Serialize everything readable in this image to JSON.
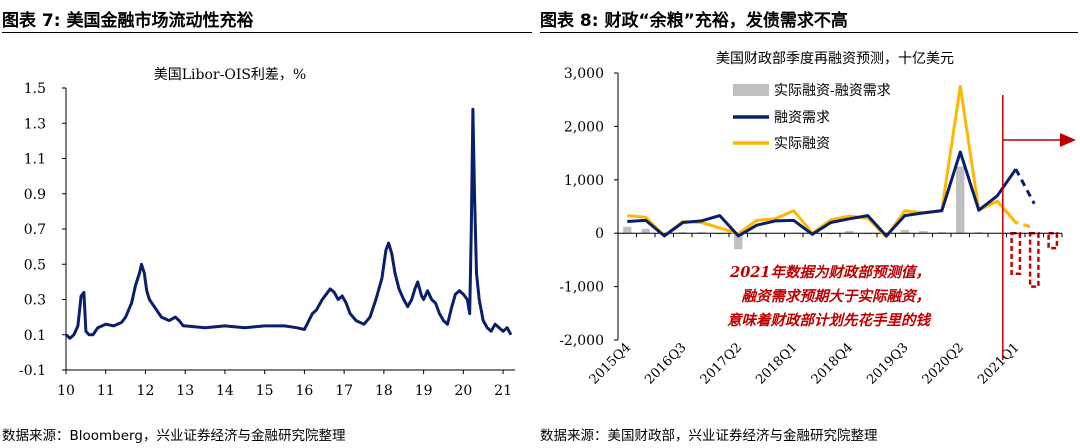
{
  "panels": [
    {
      "figure_label": "图表 7:",
      "figure_title": "美国金融市场流动性充裕",
      "source": "数据来源：Bloomberg，兴业证券经济与金融研究院整理"
    },
    {
      "figure_label": "图表 8:",
      "figure_title": "财政“余粮”充裕，发债需求不高",
      "source": "数据来源：美国财政部，兴业证券经济与金融研究院整理"
    }
  ],
  "chart_data": [
    {
      "type": "line",
      "title": "美国Libor-OIS利差，%",
      "xlabel": "",
      "ylabel": "",
      "ylim": [
        -0.1,
        1.5
      ],
      "xlim": [
        10,
        21.3
      ],
      "y_ticks": [
        "1.5",
        "1.3",
        "1.1",
        "0.9",
        "0.7",
        "0.5",
        "0.3",
        "0.1",
        "-0.1"
      ],
      "x_ticks": [
        "10",
        "11",
        "12",
        "13",
        "14",
        "15",
        "16",
        "17",
        "18",
        "19",
        "20",
        "21"
      ],
      "legend": "none",
      "grid": false,
      "color": "#0a1f6b",
      "series": [
        {
          "x": [
            10.0,
            10.1,
            10.2,
            10.3,
            10.38,
            10.45,
            10.5,
            10.58,
            10.68,
            10.8,
            11.0,
            11.2,
            11.4,
            11.5,
            11.65,
            11.75,
            11.85,
            11.9,
            11.97,
            12.03,
            12.1,
            12.25,
            12.4,
            12.6,
            12.75,
            12.85,
            12.95,
            13.0,
            13.5,
            14.0,
            14.5,
            15.0,
            15.5,
            15.8,
            16.0,
            16.2,
            16.3,
            16.45,
            16.55,
            16.65,
            16.75,
            16.85,
            16.95,
            17.05,
            17.15,
            17.3,
            17.5,
            17.65,
            17.8,
            17.95,
            18.05,
            18.12,
            18.2,
            18.28,
            18.38,
            18.5,
            18.6,
            18.7,
            18.78,
            18.85,
            18.95,
            19.0,
            19.1,
            19.2,
            19.3,
            19.4,
            19.5,
            19.6,
            19.7,
            19.8,
            19.9,
            20.0,
            20.1,
            20.16,
            20.2,
            20.24,
            20.28,
            20.33,
            20.4,
            20.5,
            20.6,
            20.7,
            20.8,
            20.9,
            21.0,
            21.1,
            21.2
          ],
          "y": [
            0.1,
            0.08,
            0.1,
            0.15,
            0.32,
            0.34,
            0.12,
            0.1,
            0.1,
            0.14,
            0.16,
            0.15,
            0.17,
            0.2,
            0.28,
            0.38,
            0.45,
            0.5,
            0.45,
            0.35,
            0.3,
            0.25,
            0.2,
            0.18,
            0.2,
            0.18,
            0.15,
            0.15,
            0.14,
            0.15,
            0.14,
            0.15,
            0.15,
            0.14,
            0.13,
            0.22,
            0.24,
            0.3,
            0.33,
            0.36,
            0.34,
            0.3,
            0.32,
            0.28,
            0.22,
            0.18,
            0.16,
            0.2,
            0.3,
            0.42,
            0.58,
            0.62,
            0.56,
            0.45,
            0.36,
            0.3,
            0.26,
            0.3,
            0.36,
            0.4,
            0.32,
            0.3,
            0.35,
            0.3,
            0.28,
            0.22,
            0.18,
            0.16,
            0.25,
            0.33,
            0.35,
            0.33,
            0.3,
            0.22,
            0.7,
            1.38,
            0.9,
            0.45,
            0.3,
            0.18,
            0.14,
            0.12,
            0.16,
            0.14,
            0.12,
            0.14,
            0.1
          ]
        }
      ]
    },
    {
      "type": "bar+line",
      "title": "美国财政部季度再融资预测，十亿美元",
      "xlabel": "",
      "ylabel": "",
      "ylim": [
        -2000,
        3000
      ],
      "y_ticks": [
        "3,000",
        "2,000",
        "1,000",
        "0",
        "-1,000",
        "-2,000"
      ],
      "x_tick_labels": [
        "2015Q4",
        "2016Q3",
        "2017Q2",
        "2018Q1",
        "2018Q4",
        "2019Q3",
        "2020Q2",
        "2021Q1"
      ],
      "x_tick_index": [
        0,
        3,
        6,
        9,
        12,
        15,
        18,
        21
      ],
      "legend": "top-left",
      "grid": false,
      "categories": [
        "2015Q4",
        "2016Q1",
        "2016Q2",
        "2016Q3",
        "2016Q4",
        "2017Q1",
        "2017Q2",
        "2017Q3",
        "2017Q4",
        "2018Q1",
        "2018Q2",
        "2018Q3",
        "2018Q4",
        "2019Q1",
        "2019Q2",
        "2019Q3",
        "2019Q4",
        "2020Q1",
        "2020Q2",
        "2020Q3",
        "2020Q4",
        "2021Q1",
        "2021Q2",
        "2021Q3"
      ],
      "series": [
        {
          "name": "实际融资-融资需求",
          "color": "#bfbfbf",
          "values": [
            120,
            80,
            0,
            20,
            20,
            -20,
            -300,
            -20,
            0,
            10,
            40,
            -20,
            40,
            -20,
            -40,
            60,
            40,
            20,
            1250,
            20,
            0,
            -760,
            -1000,
            -280
          ]
        },
        {
          "name": "融资需求",
          "color": "#0a1f6b",
          "values": [
            220,
            240,
            -50,
            200,
            230,
            330,
            -50,
            150,
            230,
            240,
            -20,
            200,
            270,
            330,
            -50,
            330,
            380,
            420,
            1520,
            430,
            700,
            1200,
            null,
            null
          ]
        },
        {
          "name": "实际融资",
          "color": "#ffb800",
          "values": [
            330,
            300,
            -50,
            220,
            200,
            100,
            -10,
            240,
            270,
            420,
            0,
            250,
            320,
            280,
            -70,
            420,
            380,
            430,
            2750,
            430,
            600,
            200,
            null,
            null
          ]
        }
      ],
      "projection": {
        "融资需求": {
          "from_index": 21,
          "values": [
            1200,
            550
          ]
        },
        "实际融资": {
          "from_index": 20,
          "values": [
            600,
            200,
            100
          ]
        }
      },
      "annotation": {
        "lines": [
          "2021年数据为财政部预测值，",
          "融资需求预期大于实际融资，",
          "意味着财政部计划先花手里的钱"
        ],
        "color": "#c00000"
      }
    }
  ]
}
